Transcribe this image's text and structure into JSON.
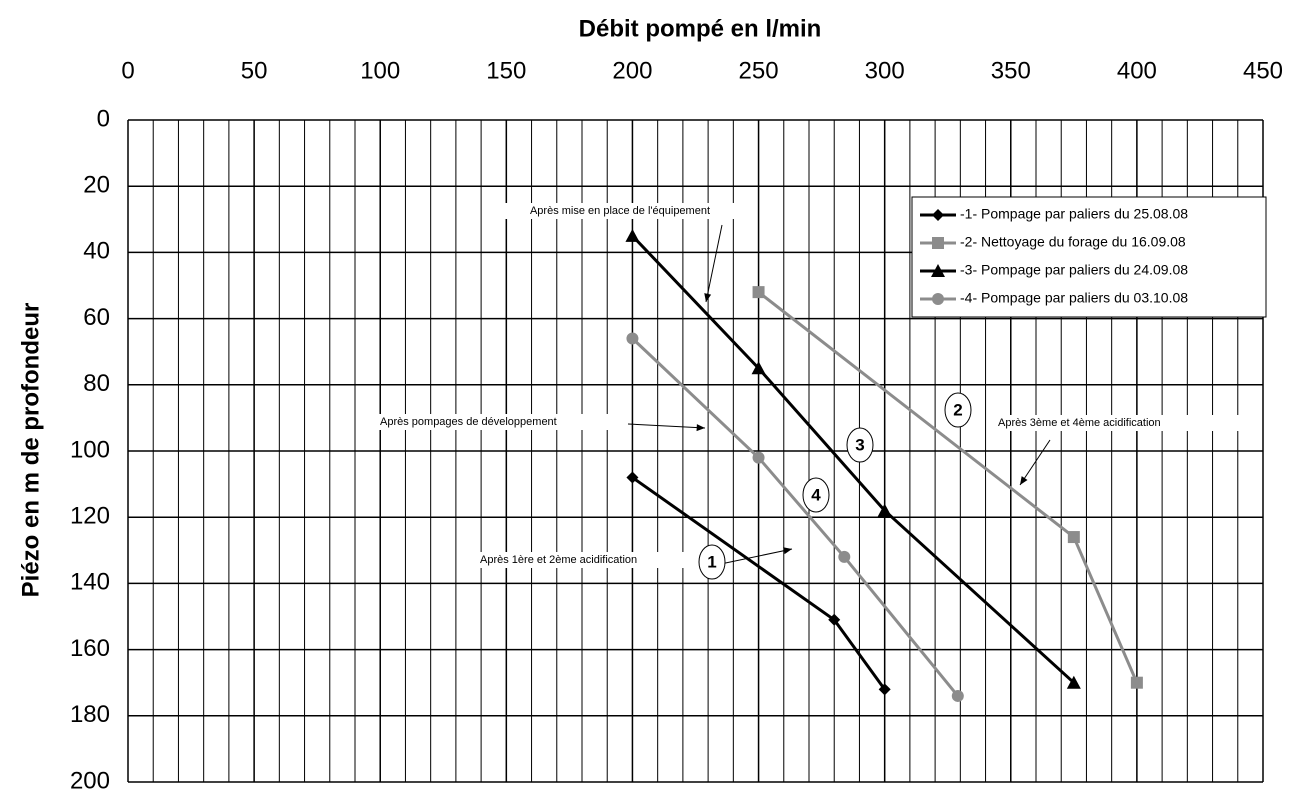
{
  "chart_data": {
    "type": "line",
    "x_label": "Débit pompé en l/min",
    "y_label": "Piézo en m de profondeur",
    "xlim": [
      0,
      450
    ],
    "xticks": [
      0,
      50,
      100,
      150,
      200,
      250,
      300,
      350,
      400,
      450
    ],
    "xminorticks": [
      0,
      10,
      20,
      30,
      40,
      50,
      60,
      70,
      80,
      90,
      100,
      110,
      120,
      130,
      140,
      150,
      160,
      170,
      180,
      190,
      200,
      210,
      220,
      230,
      240,
      250,
      260,
      270,
      280,
      290,
      300,
      310,
      320,
      330,
      340,
      350,
      360,
      370,
      380,
      390,
      400,
      410,
      420,
      430,
      440,
      450
    ],
    "ylim": [
      0,
      200
    ],
    "yticks": [
      0,
      20,
      40,
      60,
      80,
      100,
      120,
      140,
      160,
      180,
      200
    ],
    "y_inverted": true,
    "x_axis_position": "top",
    "grid": true,
    "legend_position": "upper right",
    "series": [
      {
        "name": "-1- Pompage par paliers du 25.08.08",
        "color": "#000000",
        "marker": "diamond",
        "x": [
          200,
          280,
          300
        ],
        "values": [
          108,
          151,
          172
        ]
      },
      {
        "name": "-2- Nettoyage du forage du 16.09.08",
        "color": "#8c8c8c",
        "marker": "square",
        "x": [
          250,
          375,
          400
        ],
        "values": [
          52,
          126,
          170
        ]
      },
      {
        "name": "-3- Pompage par paliers du 24.09.08",
        "color": "#000000",
        "marker": "triangle",
        "x": [
          200,
          250,
          300,
          375
        ],
        "values": [
          35,
          75,
          118,
          170
        ]
      },
      {
        "name": "-4- Pompage par paliers du 03.10.08",
        "color": "#8c8c8c",
        "marker": "circle",
        "x": [
          200,
          250,
          284,
          329
        ],
        "values": [
          66,
          102,
          132,
          174
        ]
      }
    ],
    "annotations": [
      "Après mise en place de l'équipement",
      "Après pompages de développement",
      "Après 3ème et 4ème acidification",
      "Après 1ère et 2ème acidification"
    ],
    "series_labels": [
      "1",
      "2",
      "3",
      "4"
    ]
  }
}
